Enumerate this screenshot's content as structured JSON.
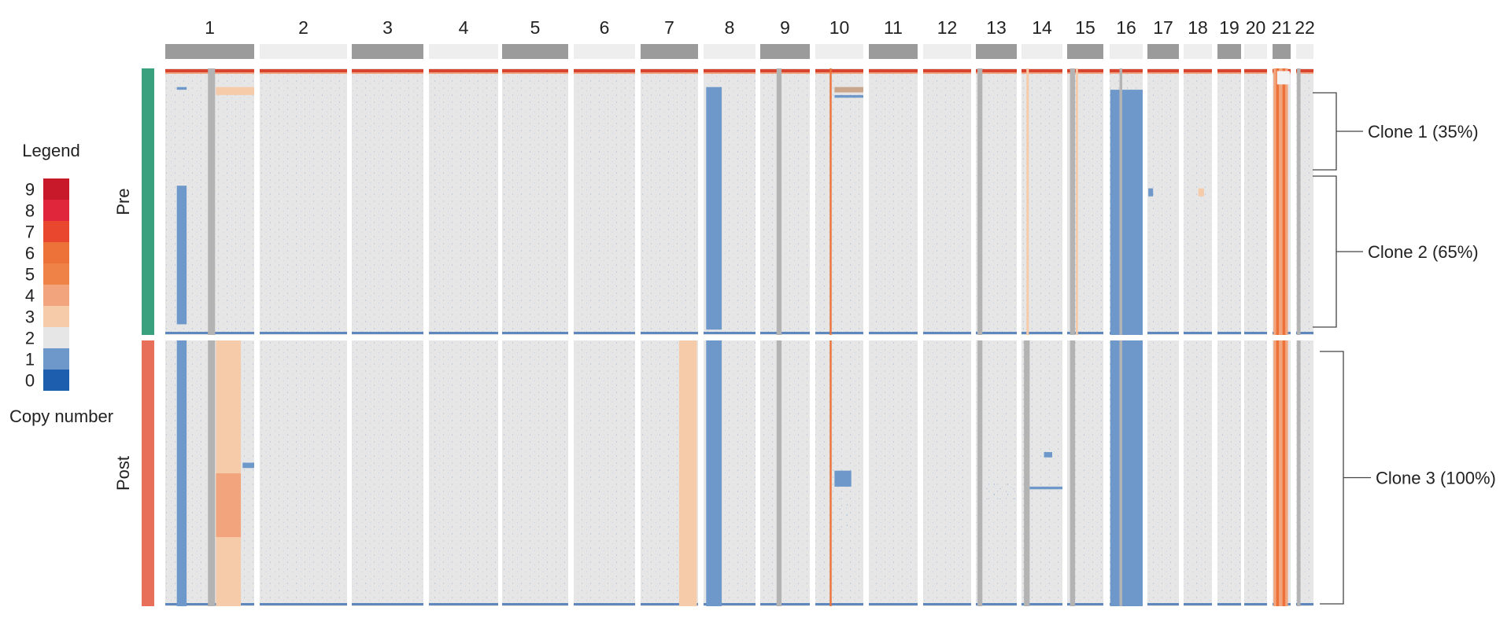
{
  "chart_data": {
    "type": "heatmap",
    "x_categories": [
      "1",
      "2",
      "3",
      "4",
      "5",
      "6",
      "7",
      "8",
      "9",
      "10",
      "11",
      "12",
      "13",
      "14",
      "15",
      "16",
      "17",
      "18",
      "19",
      "20",
      "21",
      "22"
    ],
    "y_groups": [
      "Pre",
      "Post"
    ],
    "colorscale": {
      "title": "Legend",
      "label": "Copy number",
      "levels": [
        9,
        8,
        7,
        6,
        5,
        4,
        3,
        2,
        1,
        0
      ],
      "colors": [
        "#c8192b",
        "#e0263a",
        "#e9482e",
        "#ec7239",
        "#ef8347",
        "#f2a57c",
        "#f6cbaa",
        "#e6e6e6",
        "#6d98c9",
        "#1d5fae"
      ]
    },
    "group_colors": {
      "Pre": "#3aa17e",
      "Post": "#e8705a"
    },
    "chromosome_bar_colors": {
      "odd": "#9b9b9b",
      "even": "#eeeeee"
    },
    "clones": [
      {
        "label": "Clone 1 (35%)",
        "group": "Pre",
        "fraction": 0.35
      },
      {
        "label": "Clone 2 (65%)",
        "group": "Pre",
        "fraction": 0.65
      },
      {
        "label": "Clone 3 (100%)",
        "group": "Post",
        "fraction": 1.0
      }
    ]
  }
}
